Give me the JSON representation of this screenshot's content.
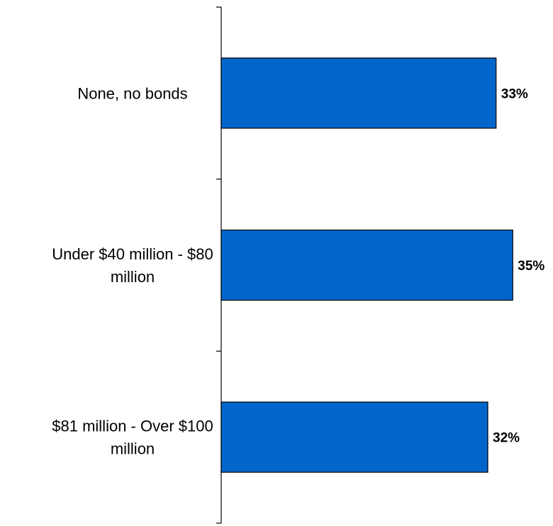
{
  "chart_data": {
    "type": "bar",
    "orientation": "horizontal",
    "categories": [
      "None, no bonds",
      "Under $40 million - $80 million",
      "$81 million - Over $100 million"
    ],
    "category_label_lines": [
      [
        "None, no bonds"
      ],
      [
        "Under $40 million - $80",
        "million"
      ],
      [
        "$81 million - Over $100",
        "million"
      ]
    ],
    "values": [
      33,
      35,
      32
    ],
    "data_labels": [
      "33%",
      "35%",
      "32%"
    ],
    "unit": "%",
    "xlim": [
      0,
      40
    ],
    "title": "",
    "xlabel": "",
    "ylabel": "",
    "grid": false,
    "legend": "none",
    "bar_color": "#0066CC",
    "bar_edge_color": "#000000"
  }
}
